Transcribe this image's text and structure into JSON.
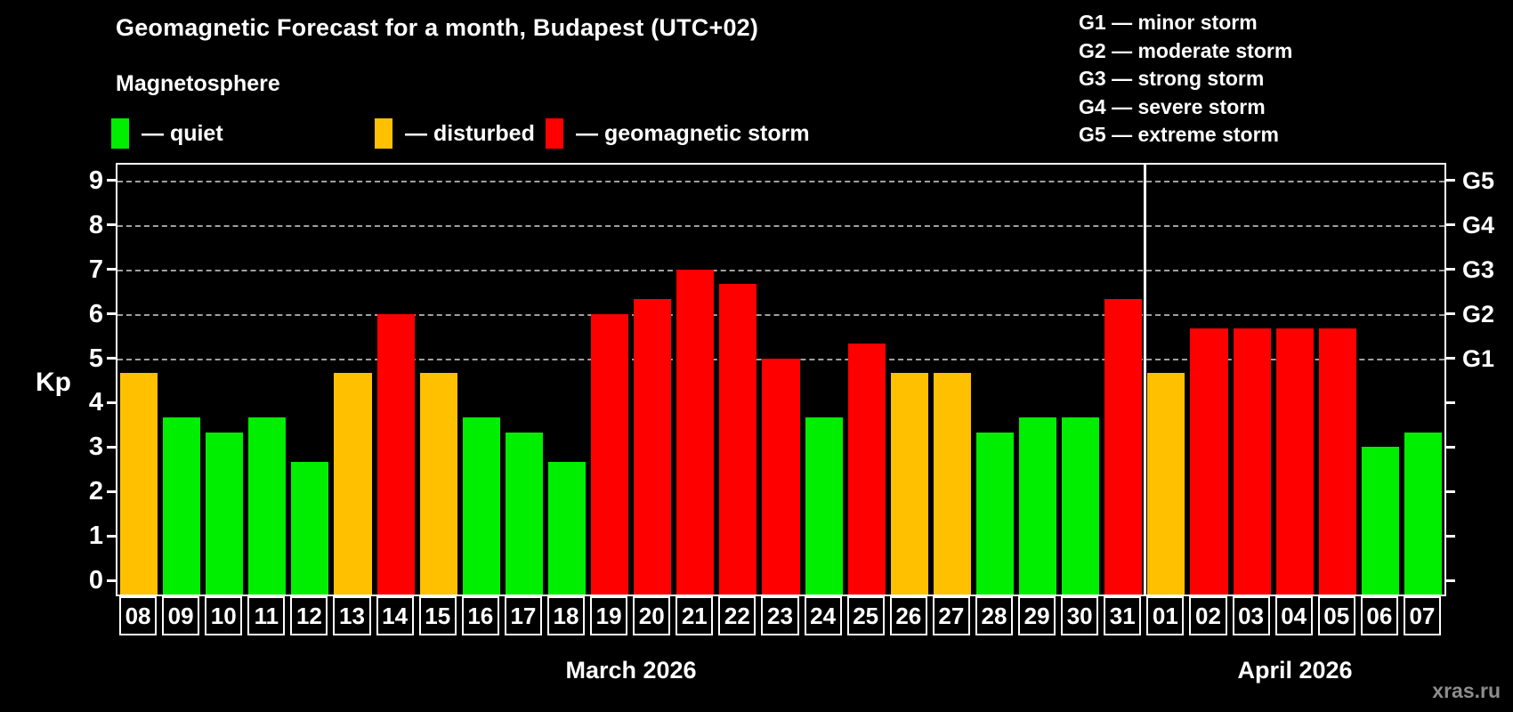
{
  "header": {
    "title": "Geomagnetic Forecast for a month, Budapest (UTC+02)",
    "subtitle": "Magnetosphere"
  },
  "legend": {
    "items": [
      {
        "label": "— quiet",
        "state": "quiet",
        "color": "#00ee00"
      },
      {
        "label": "— disturbed",
        "state": "disturbed",
        "color": "#ffc000"
      },
      {
        "label": "— geomagnetic storm",
        "state": "storm",
        "color": "#ff0000"
      }
    ]
  },
  "storm_scale": {
    "lines": [
      "G1 — minor storm",
      "G2 — moderate storm",
      "G3 — strong storm",
      "G4 — severe storm",
      "G5 — extreme storm"
    ]
  },
  "watermark": "xras.ru",
  "chart_data": {
    "type": "bar",
    "title": "Geomagnetic Forecast for a month, Budapest (UTC+02)",
    "ylabel": "Kp",
    "ylim": [
      0,
      9
    ],
    "y_ticks": [
      0,
      1,
      2,
      3,
      4,
      5,
      6,
      7,
      8,
      9
    ],
    "gridlines_at": [
      5,
      6,
      7,
      8,
      9
    ],
    "grid": "dashed horizontal at storm levels only",
    "legend_position": "top-left",
    "right_axis": [
      {
        "kp": 5,
        "label": "G1"
      },
      {
        "kp": 6,
        "label": "G2"
      },
      {
        "kp": 7,
        "label": "G3"
      },
      {
        "kp": 8,
        "label": "G4"
      },
      {
        "kp": 9,
        "label": "G5"
      }
    ],
    "state_colors": {
      "quiet": "#00ee00",
      "disturbed": "#ffc000",
      "storm": "#ff0000"
    },
    "month_sections": [
      {
        "label": "March 2026",
        "num_days": 24
      },
      {
        "label": "April 2026",
        "num_days": 7
      }
    ],
    "days": [
      {
        "date": "08",
        "kp": 4.67,
        "state": "disturbed"
      },
      {
        "date": "09",
        "kp": 3.67,
        "state": "quiet"
      },
      {
        "date": "10",
        "kp": 3.33,
        "state": "quiet"
      },
      {
        "date": "11",
        "kp": 3.67,
        "state": "quiet"
      },
      {
        "date": "12",
        "kp": 2.67,
        "state": "quiet"
      },
      {
        "date": "13",
        "kp": 4.67,
        "state": "disturbed"
      },
      {
        "date": "14",
        "kp": 6.0,
        "state": "storm"
      },
      {
        "date": "15",
        "kp": 4.67,
        "state": "disturbed"
      },
      {
        "date": "16",
        "kp": 3.67,
        "state": "quiet"
      },
      {
        "date": "17",
        "kp": 3.33,
        "state": "quiet"
      },
      {
        "date": "18",
        "kp": 2.67,
        "state": "quiet"
      },
      {
        "date": "19",
        "kp": 6.0,
        "state": "storm"
      },
      {
        "date": "20",
        "kp": 6.33,
        "state": "storm"
      },
      {
        "date": "21",
        "kp": 7.0,
        "state": "storm"
      },
      {
        "date": "22",
        "kp": 6.67,
        "state": "storm"
      },
      {
        "date": "23",
        "kp": 5.0,
        "state": "storm"
      },
      {
        "date": "24",
        "kp": 3.67,
        "state": "quiet"
      },
      {
        "date": "25",
        "kp": 5.33,
        "state": "storm"
      },
      {
        "date": "26",
        "kp": 4.67,
        "state": "disturbed"
      },
      {
        "date": "27",
        "kp": 4.67,
        "state": "disturbed"
      },
      {
        "date": "28",
        "kp": 3.33,
        "state": "quiet"
      },
      {
        "date": "29",
        "kp": 3.67,
        "state": "quiet"
      },
      {
        "date": "30",
        "kp": 3.67,
        "state": "quiet"
      },
      {
        "date": "31",
        "kp": 6.33,
        "state": "storm"
      },
      {
        "date": "01",
        "kp": 4.67,
        "state": "disturbed"
      },
      {
        "date": "02",
        "kp": 5.67,
        "state": "storm"
      },
      {
        "date": "03",
        "kp": 5.67,
        "state": "storm"
      },
      {
        "date": "04",
        "kp": 5.67,
        "state": "storm"
      },
      {
        "date": "05",
        "kp": 5.67,
        "state": "storm"
      },
      {
        "date": "06",
        "kp": 3.0,
        "state": "quiet"
      },
      {
        "date": "07",
        "kp": 3.33,
        "state": "quiet"
      }
    ]
  }
}
